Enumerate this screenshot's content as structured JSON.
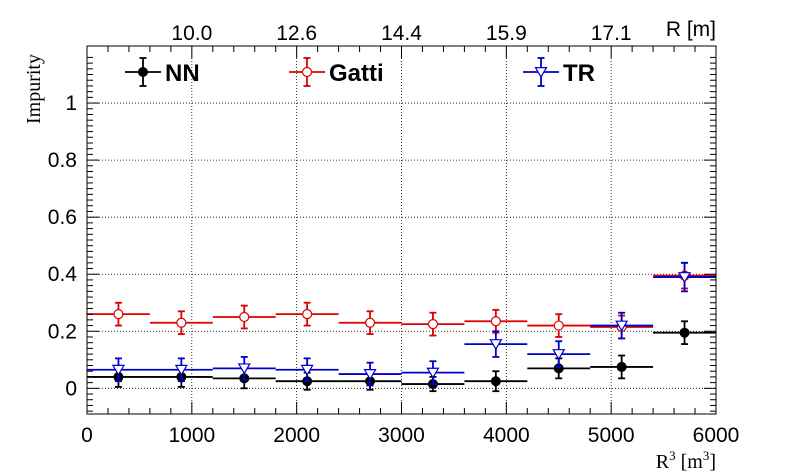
{
  "chart_data": {
    "type": "scatter",
    "title": "",
    "xlabel": "R",
    "xlabel_sup": "3",
    "xlabel_unit_prefix": " [m",
    "xlabel_unit_suffix": "]",
    "ylabel": "Impurity",
    "top_axis_label": "R [m]",
    "xlim": [
      0,
      6000
    ],
    "ylim": [
      -0.09,
      1.2
    ],
    "grid": true,
    "legend_position": "top",
    "x_ticks": [
      "0",
      "1000",
      "2000",
      "3000",
      "4000",
      "5000",
      "6000"
    ],
    "x_tick_values": [
      0,
      1000,
      2000,
      3000,
      4000,
      5000,
      6000
    ],
    "y_ticks": [
      "0",
      "0.2",
      "0.4",
      "0.6",
      "0.8",
      "1"
    ],
    "y_tick_values": [
      0,
      0.2,
      0.4,
      0.6,
      0.8,
      1.0
    ],
    "top_ticks": [
      "10.0",
      "12.6",
      "14.4",
      "15.9",
      "17.1"
    ],
    "top_tick_values": [
      1000,
      2000,
      3000,
      4000,
      5000
    ],
    "x_bin_half_width": 300,
    "series": [
      {
        "name": "NN",
        "color": "#000000",
        "marker": "filled-circle",
        "x": [
          300,
          900,
          1500,
          2100,
          2700,
          3300,
          3900,
          4500,
          5100,
          5700
        ],
        "y": [
          0.04,
          0.04,
          0.035,
          0.025,
          0.025,
          0.015,
          0.025,
          0.07,
          0.075,
          0.195
        ],
        "yerr": [
          0.035,
          0.035,
          0.035,
          0.03,
          0.03,
          0.025,
          0.035,
          0.035,
          0.04,
          0.04
        ]
      },
      {
        "name": "Gatti",
        "color": "#dd0000",
        "marker": "open-circle",
        "x": [
          300,
          900,
          1500,
          2100,
          2700,
          3300,
          3900,
          4500,
          5100,
          5700
        ],
        "y": [
          0.26,
          0.23,
          0.25,
          0.26,
          0.23,
          0.225,
          0.235,
          0.22,
          0.215,
          0.395
        ],
        "yerr": [
          0.04,
          0.04,
          0.04,
          0.04,
          0.04,
          0.04,
          0.04,
          0.04,
          0.04,
          0.045
        ]
      },
      {
        "name": "TR",
        "color": "#0000cc",
        "marker": "open-triangle-down",
        "x": [
          300,
          900,
          1500,
          2100,
          2700,
          3300,
          3900,
          4500,
          5100,
          5700
        ],
        "y": [
          0.065,
          0.065,
          0.07,
          0.065,
          0.05,
          0.055,
          0.155,
          0.12,
          0.22,
          0.39
        ],
        "yerr": [
          0.04,
          0.04,
          0.04,
          0.04,
          0.04,
          0.04,
          0.045,
          0.045,
          0.045,
          0.05
        ]
      }
    ]
  }
}
